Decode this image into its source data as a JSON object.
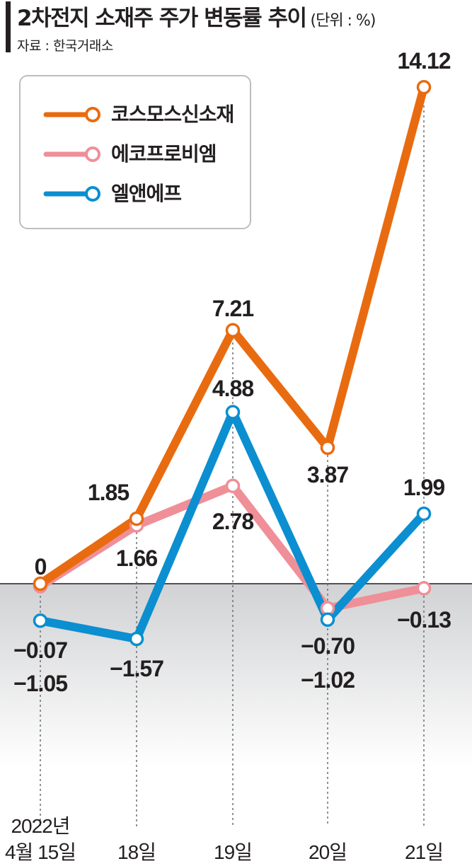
{
  "header": {
    "title": "2차전지 소재주 주가 변동률 추이",
    "unit": "(단위 : %)",
    "source": "자료 : 한국거래소"
  },
  "chart_data": {
    "type": "line",
    "x": [
      "4월 15일",
      "18일",
      "19일",
      "20일",
      "21일"
    ],
    "x_year_label": "2022년",
    "ylabel": "",
    "unit": "%",
    "series": [
      {
        "name": "코스모스신소재",
        "color": "#e96b10",
        "values": [
          0,
          1.85,
          7.21,
          3.87,
          14.12
        ],
        "labels": [
          "0",
          "1.85",
          "7.21",
          "3.87",
          "14.12"
        ]
      },
      {
        "name": "에코프로비엠",
        "color": "#ef8f98",
        "values": [
          -0.07,
          1.66,
          2.78,
          -0.7,
          -0.13
        ],
        "labels": [
          "−0.07",
          "1.66",
          "2.78",
          "−0.70",
          "−0.13"
        ]
      },
      {
        "name": "엘앤에프",
        "color": "#0b8fd0",
        "values": [
          -1.05,
          -1.57,
          4.88,
          -1.02,
          1.99
        ],
        "labels": [
          "−1.05",
          "−1.57",
          "4.88",
          "−1.02",
          "1.99"
        ]
      }
    ],
    "zero_line": true,
    "negative_region_shaded": true,
    "vertical_guides": "dashed",
    "legend_position": "top-left"
  }
}
